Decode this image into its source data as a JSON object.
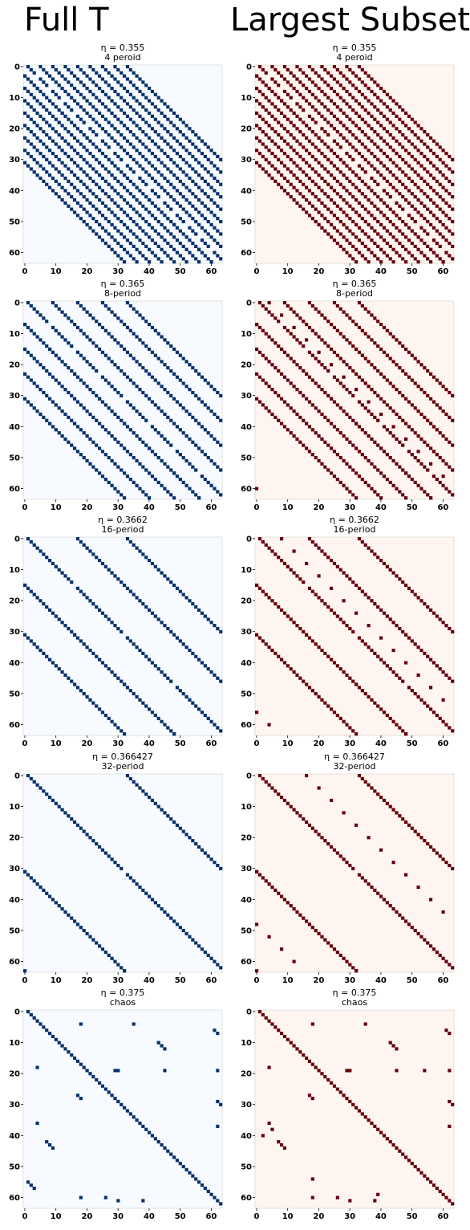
{
  "headers": {
    "left": "Full T",
    "right": "Largest Subset"
  },
  "colors": {
    "full_cell": "#08306b",
    "full_bg": "#f7fbff",
    "subset_cell": "#67000d",
    "subset_bg": "#fff5f0"
  },
  "chart_data": [
    {
      "type": "heatmap",
      "column": "full",
      "eta": "η = 0.355",
      "subtitle": "4 peroid",
      "size": 64,
      "xticks": [
        0,
        10,
        20,
        30,
        40,
        50,
        60
      ],
      "yticks": [
        0,
        10,
        20,
        30,
        40,
        50,
        60
      ],
      "pattern": "period",
      "period": 4
    },
    {
      "type": "heatmap",
      "column": "subset",
      "eta": "η = 0.355",
      "subtitle": "4 peroid",
      "size": 64,
      "xticks": [
        0,
        10,
        20,
        30,
        40,
        50,
        60
      ],
      "yticks": [
        0,
        10,
        20,
        30,
        40,
        50,
        60
      ],
      "pattern": "period",
      "period": 4
    },
    {
      "type": "heatmap",
      "column": "full",
      "eta": "η = 0.365",
      "subtitle": "8-period",
      "size": 64,
      "xticks": [
        0,
        10,
        20,
        30,
        40,
        50,
        60
      ],
      "yticks": [
        0,
        10,
        20,
        30,
        40,
        50,
        60
      ],
      "pattern": "period",
      "period": 8
    },
    {
      "type": "heatmap",
      "column": "subset",
      "eta": "η = 0.365",
      "subtitle": "8-period",
      "size": 64,
      "xticks": [
        0,
        10,
        20,
        30,
        40,
        50,
        60
      ],
      "yticks": [
        0,
        10,
        20,
        30,
        40,
        50,
        60
      ],
      "pattern": "period",
      "period": 8
    },
    {
      "type": "heatmap",
      "column": "full",
      "eta": "η = 0.3662",
      "subtitle": "16-period",
      "size": 64,
      "xticks": [
        0,
        10,
        20,
        30,
        40,
        50,
        60
      ],
      "yticks": [
        0,
        10,
        20,
        30,
        40,
        50,
        60
      ],
      "pattern": "period",
      "period": 16
    },
    {
      "type": "heatmap",
      "column": "subset",
      "eta": "η = 0.3662",
      "subtitle": "16-period",
      "size": 64,
      "xticks": [
        0,
        10,
        20,
        30,
        40,
        50,
        60
      ],
      "yticks": [
        0,
        10,
        20,
        30,
        40,
        50,
        60
      ],
      "pattern": "period",
      "period": 16
    },
    {
      "type": "heatmap",
      "column": "full",
      "eta": "η = 0.366427",
      "subtitle": "32-period",
      "size": 64,
      "xticks": [
        0,
        10,
        20,
        30,
        40,
        50,
        60
      ],
      "yticks": [
        0,
        10,
        20,
        30,
        40,
        50,
        60
      ],
      "pattern": "period",
      "period": 32
    },
    {
      "type": "heatmap",
      "column": "subset",
      "eta": "η = 0.366427",
      "subtitle": "32-period",
      "size": 64,
      "xticks": [
        0,
        10,
        20,
        30,
        40,
        50,
        60
      ],
      "yticks": [
        0,
        10,
        20,
        30,
        40,
        50,
        60
      ],
      "pattern": "period",
      "period": 32
    },
    {
      "type": "heatmap",
      "column": "full",
      "eta": "η = 0.375",
      "subtitle": "chaos",
      "size": 64,
      "xticks": [
        0,
        10,
        20,
        30,
        40,
        50,
        60
      ],
      "yticks": [
        0,
        10,
        20,
        30,
        40,
        50,
        60
      ],
      "pattern": "chaos",
      "diagonal_offset": 1,
      "extra_cells": [
        [
          55,
          1
        ],
        [
          56,
          2
        ],
        [
          57,
          3
        ],
        [
          4,
          18
        ],
        [
          18,
          4
        ],
        [
          60,
          18
        ],
        [
          6,
          61
        ],
        [
          7,
          62
        ],
        [
          4,
          35
        ],
        [
          19,
          29
        ],
        [
          19,
          45
        ],
        [
          36,
          4
        ],
        [
          42,
          7
        ],
        [
          43,
          8
        ],
        [
          44,
          9
        ],
        [
          60,
          26
        ],
        [
          61,
          30
        ],
        [
          19,
          62
        ],
        [
          29,
          62
        ],
        [
          37,
          62
        ],
        [
          61,
          38
        ],
        [
          27,
          17
        ],
        [
          28,
          18
        ],
        [
          30,
          63
        ],
        [
          10,
          43
        ],
        [
          11,
          44
        ],
        [
          12,
          45
        ],
        [
          19,
          30
        ]
      ]
    },
    {
      "type": "heatmap",
      "column": "subset",
      "eta": "η = 0.375",
      "subtitle": "chaos",
      "size": 64,
      "xticks": [
        0,
        10,
        20,
        30,
        40,
        50,
        60
      ],
      "yticks": [
        0,
        10,
        20,
        30,
        40,
        50,
        60
      ],
      "pattern": "chaos",
      "diagonal_offset": 1,
      "extra_cells": [
        [
          4,
          18
        ],
        [
          18,
          4
        ],
        [
          60,
          18
        ],
        [
          54,
          18
        ],
        [
          6,
          61
        ],
        [
          7,
          62
        ],
        [
          4,
          35
        ],
        [
          19,
          29
        ],
        [
          19,
          45
        ],
        [
          36,
          4
        ],
        [
          42,
          7
        ],
        [
          43,
          8
        ],
        [
          44,
          9
        ],
        [
          60,
          26
        ],
        [
          61,
          30
        ],
        [
          19,
          62
        ],
        [
          29,
          62
        ],
        [
          37,
          62
        ],
        [
          61,
          38
        ],
        [
          27,
          17
        ],
        [
          28,
          18
        ],
        [
          30,
          63
        ],
        [
          10,
          43
        ],
        [
          11,
          44
        ],
        [
          12,
          45
        ],
        [
          19,
          30
        ],
        [
          19,
          54
        ],
        [
          40,
          2
        ],
        [
          38,
          5
        ],
        [
          59,
          39
        ]
      ]
    }
  ]
}
